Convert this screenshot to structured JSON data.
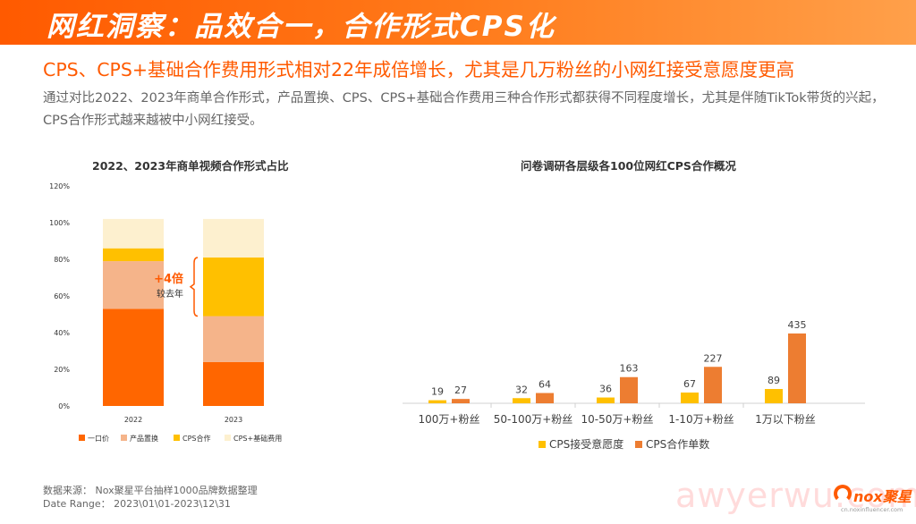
{
  "banner": {
    "title": "网红洞察：品效合一，合作形式CPS化"
  },
  "headline": "CPS、CPS+基础合作费用形式相对22年成倍增长，尤其是几万粉丝的小网红接受意愿度更高",
  "description": "通过对比2022、2023年商单合作形式，产品置换、CPS、CPS+基础合作费用三种合作形式都获得不同程度增长，尤其是伴随TikTok带货的兴起，CPS合作形式越来越被中小网红接受。",
  "colors": {
    "orange": "#ff6600",
    "peach": "#f5b48a",
    "yellow": "#ffc000",
    "cream": "#fdf0cf",
    "bar_orange": "#ed7d31"
  },
  "chart_data": [
    {
      "type": "bar",
      "stacked": true,
      "title": "2022、2023年商单视频合作形式占比",
      "categories": [
        "2022",
        "2023"
      ],
      "ylim": [
        0,
        120
      ],
      "yticks": [
        "0%",
        "20%",
        "40%",
        "60%",
        "80%",
        "100%",
        "120%"
      ],
      "series": [
        {
          "name": "一口价",
          "color": "#ff6600",
          "values": [
            53,
            24
          ]
        },
        {
          "name": "产品置换",
          "color": "#f5b48a",
          "values": [
            26,
            25
          ]
        },
        {
          "name": "CPS合作",
          "color": "#ffc000",
          "values": [
            7,
            32
          ]
        },
        {
          "name": "CPS+基础费用",
          "color": "#fdf0cf",
          "values": [
            16,
            21
          ]
        }
      ],
      "annotation": {
        "main": "+4倍",
        "sub": "较去年"
      },
      "legend": "bottom"
    },
    {
      "type": "bar",
      "title": "问卷调研各层级各100位网红CPS合作概况",
      "categories": [
        "100万+粉丝",
        "50-100万+粉丝",
        "10-50万+粉丝",
        "1-10万+粉丝",
        "1万以下粉丝"
      ],
      "series": [
        {
          "name": "CPS接受意愿度",
          "color": "#ffc000",
          "values": [
            19,
            32,
            36,
            67,
            89
          ]
        },
        {
          "name": "CPS合作单数",
          "color": "#ed7d31",
          "values": [
            27,
            64,
            163,
            227,
            435
          ]
        }
      ],
      "ylim": [
        0,
        450
      ],
      "legend": "bottom"
    }
  ],
  "source": {
    "line1": "数据来源：   Nox聚星平台抽样1000品牌数据整理",
    "line2": "Date Range：   2023\\01\\01-2023\\12\\31"
  },
  "watermark": "awyerwu.com",
  "logo": {
    "text": "nox聚星",
    "url": "cn.noxinfluencer.com"
  }
}
